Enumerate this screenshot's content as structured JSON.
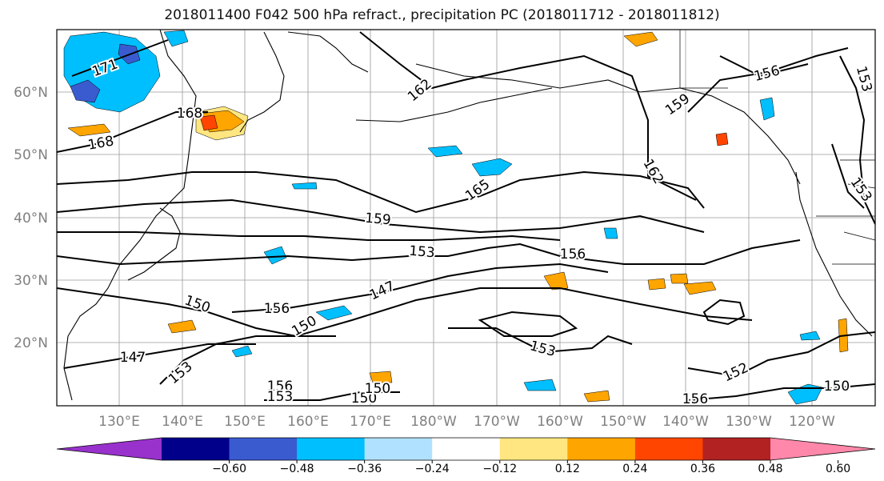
{
  "title": "2018011400 F042 500 hPa refract., precipitation PC (2018011712 - 2018011812)",
  "map": {
    "lat_labels": [
      "60°N",
      "50°N",
      "40°N",
      "30°N",
      "20°N"
    ],
    "lon_labels": [
      "130°E",
      "140°E",
      "150°E",
      "160°E",
      "170°E",
      "180°W",
      "170°W",
      "160°W",
      "150°W",
      "140°W",
      "130°W",
      "120°W"
    ],
    "contour_labels": [
      "171",
      "168",
      "168",
      "162",
      "159",
      "156",
      "162",
      "165",
      "159",
      "153",
      "156",
      "153",
      "150",
      "156",
      "150",
      "147",
      "147",
      "153",
      "153",
      "152",
      "156",
      "153",
      "150",
      "150",
      "150",
      "156",
      "153"
    ]
  },
  "colorbar": {
    "colors": [
      "#9932cc",
      "#00008b",
      "#3a5bd0",
      "#00bfff",
      "#b0e2ff",
      "#ffffff",
      "#ffe680",
      "#ffa500",
      "#ff4500",
      "#b22222",
      "#ff88aa"
    ],
    "tick_labels": [
      "−0.60",
      "−0.48",
      "−0.36",
      "−0.24",
      "−0.12",
      "0.12",
      "0.24",
      "0.36",
      "0.48",
      "0.60"
    ]
  }
}
